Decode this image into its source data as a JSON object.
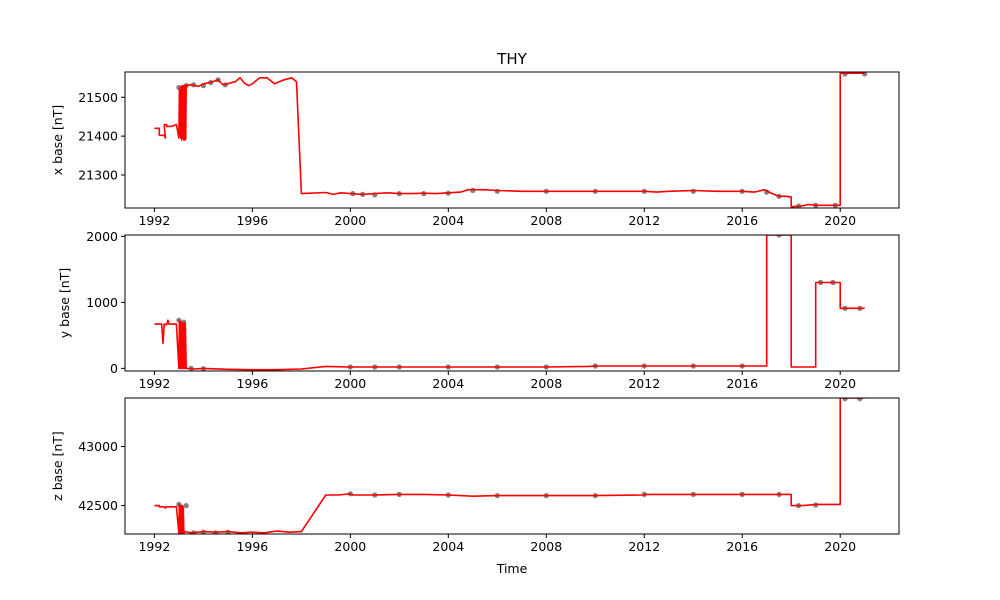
{
  "chart_data": [
    {
      "type": "line",
      "title": "THY",
      "xlabel": "",
      "ylabel": "x base [nT]",
      "xlim": [
        1990.8,
        2022.4
      ],
      "ylim": [
        21215,
        21565
      ],
      "xticks": [
        1992,
        1996,
        2000,
        2004,
        2008,
        2012,
        2016,
        2020
      ],
      "xtick_labels": [
        "1992",
        "1996",
        "2000",
        "2004",
        "2008",
        "2012",
        "2016",
        "2020"
      ],
      "yticks": [
        21300,
        21400,
        21500
      ],
      "ytick_labels": [
        "21300",
        "21400",
        "21500"
      ],
      "series": [
        {
          "color": "#ff0000",
          "style": "line",
          "x": [
            1992.0,
            1992.2,
            1992.2,
            1992.4,
            1992.45,
            1992.4,
            1992.5,
            1992.5,
            1992.7,
            1992.9,
            1993.0,
            1993.02,
            1993.04,
            1993.06,
            1993.08,
            1993.1,
            1993.12,
            1993.14,
            1993.16,
            1993.18,
            1993.2,
            1993.22,
            1993.24,
            1993.26,
            1993.28,
            1993.3,
            1993.5,
            1993.8,
            1994.0,
            1994.3,
            1994.6,
            1994.8,
            1995.0,
            1995.3,
            1995.5,
            1995.7,
            1995.85,
            1996.0,
            1996.3,
            1996.6,
            1996.9,
            1997.1,
            1997.3,
            1997.6,
            1997.8,
            1998.0,
            1999.0,
            1999.3,
            1999.6,
            2000.0,
            2000.5,
            2001.0,
            2001.5,
            2002.0,
            2002.5,
            2003.0,
            2003.5,
            2004.0,
            2004.5,
            2004.8,
            2005.5,
            2006.0,
            2007.0,
            2008.0,
            2009.0,
            2010.0,
            2011.0,
            2012.0,
            2012.5,
            2013.0,
            2014.0,
            2015.0,
            2016.0,
            2016.5,
            2016.9,
            2017.1,
            2017.3,
            2017.5,
            2017.8,
            2018.0,
            2018.0,
            2018.4,
            2018.7,
            2019.0,
            2019.5,
            2020.0,
            2020.0,
            2020.5,
            2021.0
          ],
          "y": [
            21420,
            21420,
            21402,
            21402,
            21395,
            21430,
            21430,
            21425,
            21425,
            21430,
            21395,
            21520,
            21400,
            21525,
            21395,
            21528,
            21390,
            21530,
            21395,
            21530,
            21390,
            21530,
            21390,
            21530,
            21392,
            21530,
            21532,
            21528,
            21535,
            21538,
            21545,
            21532,
            21535,
            21540,
            21550,
            21535,
            21530,
            21535,
            21550,
            21550,
            21535,
            21540,
            21545,
            21550,
            21540,
            21252,
            21255,
            21250,
            21254,
            21252,
            21250,
            21252,
            21254,
            21252,
            21252,
            21253,
            21252,
            21254,
            21256,
            21262,
            21262,
            21260,
            21258,
            21258,
            21258,
            21258,
            21258,
            21258,
            21256,
            21258,
            21260,
            21258,
            21258,
            21256,
            21262,
            21256,
            21250,
            21245,
            21245,
            21243,
            21218,
            21220,
            21224,
            21222,
            21222,
            21222,
            21562,
            21562,
            21562
          ]
        },
        {
          "color": "#808080",
          "style": "points",
          "x": [
            1993.0,
            1993.3,
            1993.6,
            1994.0,
            1994.3,
            1994.6,
            1994.9,
            2000.1,
            2000.5,
            2001.0,
            2002.0,
            2003.0,
            2004.0,
            2005.0,
            2006.0,
            2008.0,
            2010.0,
            2012.0,
            2014.0,
            2016.0,
            2017.0,
            2017.5,
            2018.3,
            2019.0,
            2019.8,
            2020.2,
            2021.0
          ],
          "y": [
            21525,
            21530,
            21532,
            21530,
            21538,
            21545,
            21532,
            21252,
            21250,
            21249,
            21252,
            21252,
            21253,
            21260,
            21258,
            21258,
            21258,
            21258,
            21258,
            21258,
            21256,
            21245,
            21220,
            21222,
            21222,
            21560,
            21560
          ]
        }
      ]
    },
    {
      "type": "line",
      "title": "",
      "xlabel": "",
      "ylabel": "y base [nT]",
      "xlim": [
        1990.8,
        2022.4
      ],
      "ylim": [
        -40,
        2020
      ],
      "xticks": [
        1992,
        1996,
        2000,
        2004,
        2008,
        2012,
        2016,
        2020
      ],
      "xtick_labels": [
        "1992",
        "1996",
        "2000",
        "2004",
        "2008",
        "2012",
        "2016",
        "2020"
      ],
      "yticks": [
        0,
        1000,
        2000
      ],
      "ytick_labels": [
        "0",
        "1000",
        "2000"
      ],
      "series": [
        {
          "color": "#ff0000",
          "style": "line",
          "x": [
            1992.0,
            1992.3,
            1992.35,
            1992.4,
            1992.5,
            1992.55,
            1992.6,
            1992.9,
            1993.0,
            1993.02,
            1993.04,
            1993.06,
            1993.08,
            1993.1,
            1993.12,
            1993.14,
            1993.16,
            1993.18,
            1993.2,
            1993.22,
            1993.24,
            1993.26,
            1993.3,
            1993.6,
            1994.0,
            1995.0,
            1996.0,
            1997.0,
            1998.0,
            1999.0,
            1999.9,
            2000.0,
            2002.0,
            2004.0,
            2006.0,
            2008.0,
            2009.7,
            2010.0,
            2012.0,
            2014.0,
            2016.0,
            2017.0,
            2017.0,
            2018.0,
            2018.0,
            2019.0,
            2019.0,
            2020.0,
            2020.0,
            2021.0
          ],
          "y": [
            670,
            670,
            380,
            670,
            660,
            730,
            670,
            670,
            0,
            720,
            0,
            710,
            0,
            700,
            0,
            690,
            0,
            680,
            0,
            690,
            0,
            680,
            0,
            -10,
            0,
            -15,
            -20,
            -20,
            -10,
            30,
            20,
            20,
            20,
            20,
            20,
            20,
            30,
            35,
            35,
            35,
            35,
            35,
            2020,
            2020,
            20,
            20,
            1300,
            1300,
            910,
            910
          ]
        },
        {
          "color": "#808080",
          "style": "points",
          "x": [
            1993.0,
            1993.2,
            1993.5,
            1994.0,
            2000.0,
            2001.0,
            2002.0,
            2004.0,
            2006.0,
            2008.0,
            2010.0,
            2012.0,
            2014.0,
            2016.0,
            2017.5,
            2019.2,
            2019.7,
            2020.2,
            2020.8
          ],
          "y": [
            730,
            700,
            0,
            -5,
            20,
            20,
            20,
            20,
            20,
            20,
            35,
            35,
            35,
            35,
            2020,
            1300,
            1300,
            910,
            910
          ]
        }
      ]
    },
    {
      "type": "line",
      "title": "",
      "xlabel": "Time",
      "ylabel": "z base [nT]",
      "xlim": [
        1990.8,
        2022.4
      ],
      "ylim": [
        42260,
        43410
      ],
      "xticks": [
        1992,
        1996,
        2000,
        2004,
        2008,
        2012,
        2016,
        2020
      ],
      "xtick_labels": [
        "1992",
        "1996",
        "2000",
        "2004",
        "2008",
        "2012",
        "2016",
        "2020"
      ],
      "yticks": [
        42500,
        43000
      ],
      "ytick_labels": [
        "42500",
        "43000"
      ],
      "series": [
        {
          "color": "#ff0000",
          "style": "line",
          "x": [
            1992.0,
            1992.2,
            1992.2,
            1992.4,
            1992.45,
            1992.5,
            1992.9,
            1993.0,
            1993.02,
            1993.04,
            1993.06,
            1993.08,
            1993.1,
            1993.12,
            1993.14,
            1993.16,
            1993.18,
            1993.2,
            1993.25,
            1993.5,
            1994.0,
            1994.5,
            1995.0,
            1995.5,
            1996.0,
            1996.5,
            1997.0,
            1997.5,
            1998.0,
            1999.0,
            1999.5,
            2000.0,
            2000.1,
            2001.0,
            2002.0,
            2003.0,
            2004.0,
            2005.0,
            2006.0,
            2008.0,
            2010.0,
            2012.0,
            2012.0,
            2014.0,
            2016.0,
            2017.0,
            2018.0,
            2018.0,
            2018.5,
            2019.0,
            2020.0,
            2020.0,
            2021.0
          ],
          "y": [
            42500,
            42500,
            42490,
            42490,
            42480,
            42490,
            42490,
            42265,
            42510,
            42265,
            42500,
            42265,
            42500,
            42265,
            42500,
            42265,
            42490,
            42265,
            42280,
            42270,
            42280,
            42275,
            42280,
            42270,
            42275,
            42270,
            42285,
            42275,
            42280,
            42590,
            42590,
            42600,
            42590,
            42590,
            42595,
            42595,
            42590,
            42580,
            42585,
            42585,
            42585,
            42590,
            42595,
            42595,
            42595,
            42595,
            42595,
            42500,
            42500,
            42510,
            42510,
            43410,
            43410
          ]
        },
        {
          "color": "#808080",
          "style": "points",
          "x": [
            1993.0,
            1993.3,
            1993.6,
            1994.0,
            1994.5,
            1995.0,
            2000.0,
            2001.0,
            2002.0,
            2004.0,
            2006.0,
            2008.0,
            2010.0,
            2012.0,
            2014.0,
            2016.0,
            2017.5,
            2018.3,
            2019.0,
            2020.2,
            2020.8
          ],
          "y": [
            42510,
            42500,
            42270,
            42275,
            42270,
            42275,
            42600,
            42590,
            42595,
            42590,
            42585,
            42585,
            42585,
            42595,
            42595,
            42595,
            42595,
            42500,
            42505,
            43405,
            43405
          ]
        }
      ]
    }
  ]
}
